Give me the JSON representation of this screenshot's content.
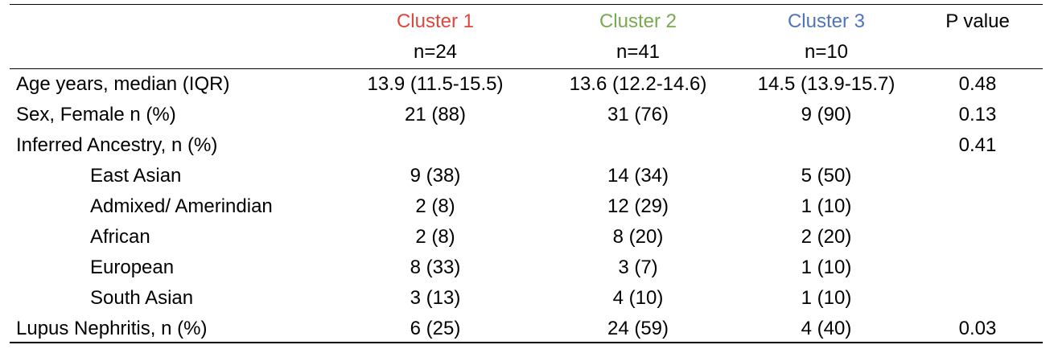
{
  "colors": {
    "cluster1": "#e0463b",
    "cluster2": "#78aa4f",
    "cluster3": "#4f74bd"
  },
  "header": {
    "cluster1": "Cluster 1",
    "cluster2": "Cluster 2",
    "cluster3": "Cluster 3",
    "pvalue": "P value",
    "n1": "n=24",
    "n2": "n=41",
    "n3": "n=10"
  },
  "rows": [
    {
      "label": "Age years, median (IQR)",
      "c1": "13.9 (11.5-15.5)",
      "c2": "13.6 (12.2-14.6)",
      "c3": "14.5 (13.9-15.7)",
      "p": "0.48"
    },
    {
      "label": "Sex, Female n (%)",
      "c1": "21 (88)",
      "c2": "31 (76)",
      "c3": "9 (90)",
      "p": "0.13"
    },
    {
      "label": "Inferred Ancestry, n (%)",
      "c1": "",
      "c2": "",
      "c3": "",
      "p": "0.41"
    },
    {
      "label": "East Asian",
      "c1": "9 (38)",
      "c2": "14 (34)",
      "c3": "5 (50)",
      "p": ""
    },
    {
      "label": "Admixed/ Amerindian",
      "c1": "2 (8)",
      "c2": "12 (29)",
      "c3": "1 (10)",
      "p": ""
    },
    {
      "label": "African",
      "c1": "2 (8)",
      "c2": "8 (20)",
      "c3": "2 (20)",
      "p": ""
    },
    {
      "label": "European",
      "c1": "8 (33)",
      "c2": "3 (7)",
      "c3": "1 (10)",
      "p": ""
    },
    {
      "label": "South Asian",
      "c1": "3 (13)",
      "c2": "4 (10)",
      "c3": "1 (10)",
      "p": ""
    },
    {
      "label": "Lupus Nephritis, n (%)",
      "c1": "6 (25)",
      "c2": "24 (59)",
      "c3": "4 (40)",
      "p": "0.03"
    }
  ]
}
